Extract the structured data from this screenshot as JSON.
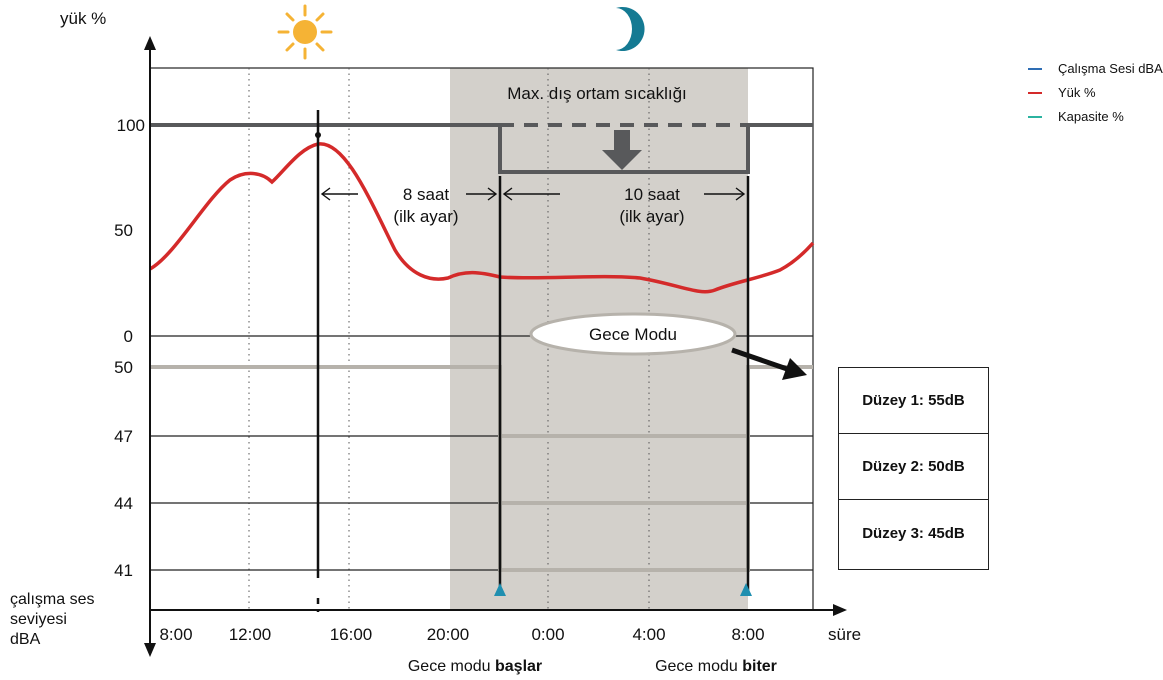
{
  "axes": {
    "y_top_title": "yük %",
    "y_bottom_title": [
      "çalışma ses",
      "seviyesi",
      "dBA"
    ],
    "x_title": "süre",
    "y_top_ticks": [
      "100",
      "50",
      "0"
    ],
    "y_bottom_ticks": [
      "50",
      "47",
      "44",
      "41"
    ],
    "x_ticks": [
      "8:00",
      "12:00",
      "16:00",
      "20:00",
      "0:00",
      "4:00",
      "8:00"
    ]
  },
  "icons": {
    "day": "sun-icon",
    "night": "moon-icon"
  },
  "annotations": {
    "max_temp": "Max. dış ortam sıcaklığı",
    "eight_hours": "8 saat",
    "eight_hours_sub": "(ilk ayar)",
    "ten_hours": "10 saat",
    "ten_hours_sub": "(ilk ayar)",
    "night_mode": "Gece Modu",
    "start_prefix": "Gece modu ",
    "start_bold": "başlar",
    "end_prefix": "Gece modu ",
    "end_bold": "biter"
  },
  "legend": [
    {
      "label": "Çalışma Sesi dBA",
      "color": "#2e6db4"
    },
    {
      "label": "Yük %",
      "color": "#d42a2a"
    },
    {
      "label": "Kapasite %",
      "color": "#2bb3a0"
    }
  ],
  "levels": [
    "Düzey 1: 55dB",
    "Düzey 2: 50dB",
    "Düzey 3: 45dB"
  ],
  "colors": {
    "load_curve": "#d42a2a",
    "capacity_line": "#58595b",
    "sound_line": "#b6b2ab",
    "night_band": "#d3d0cb",
    "marker": "#1f8fb0"
  }
}
